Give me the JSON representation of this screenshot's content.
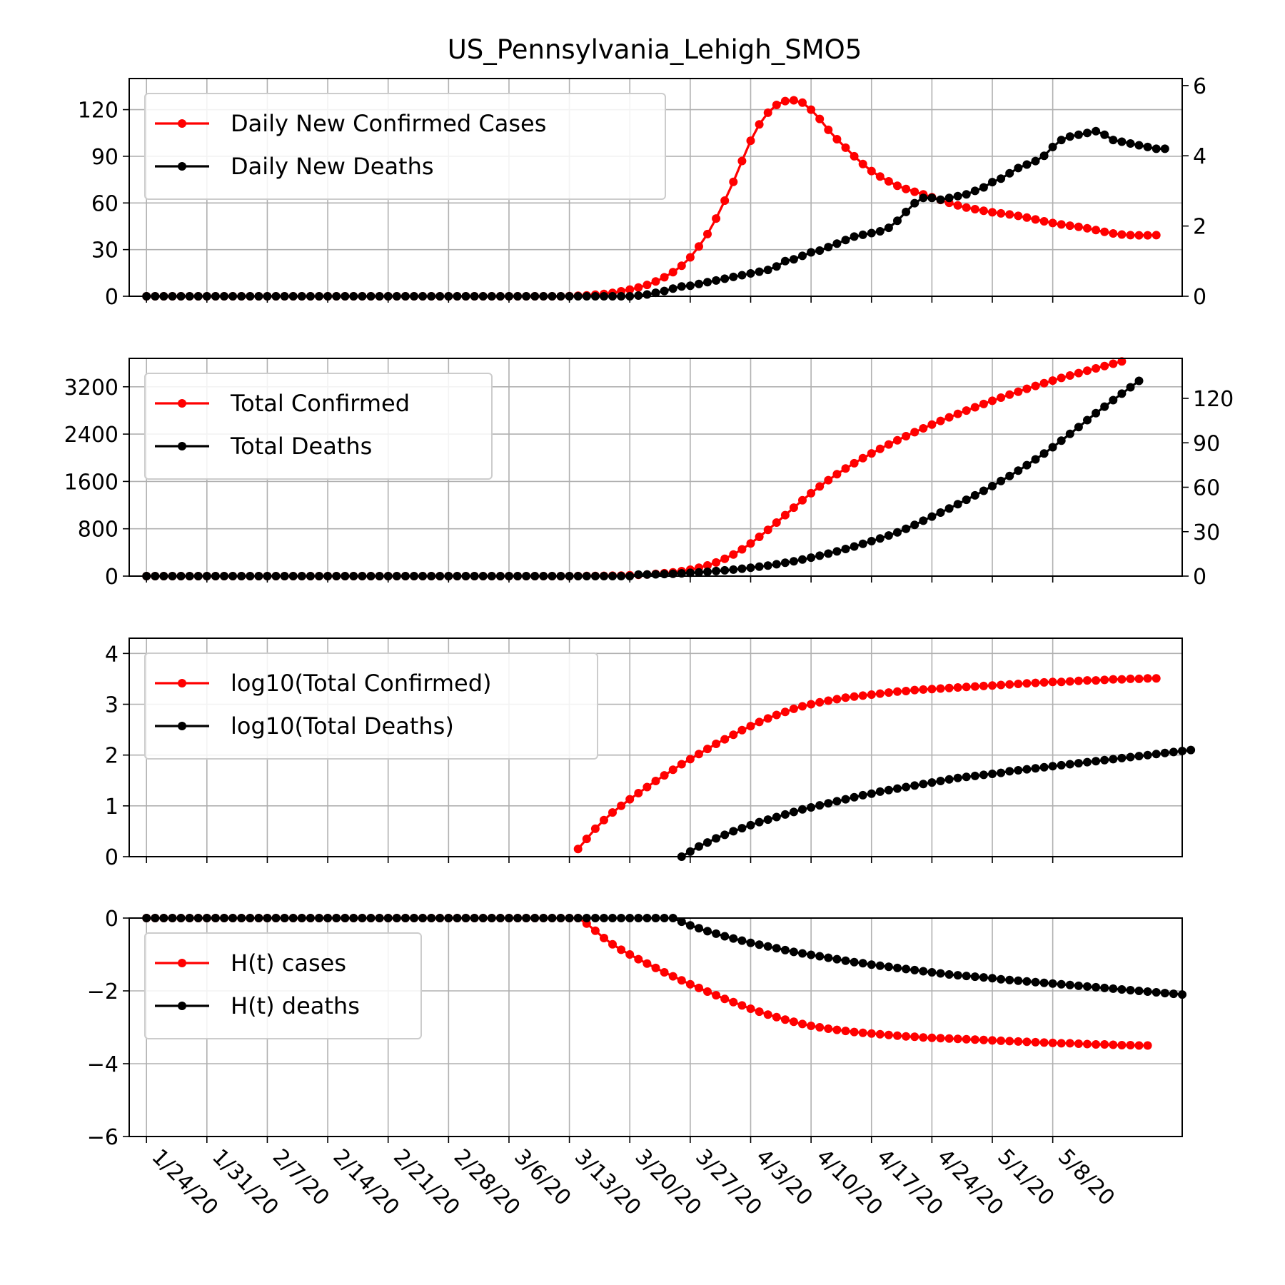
{
  "title": "US_Pennsylvania_Lehigh_SMO5",
  "colors": {
    "cases": "#ff0000",
    "deaths": "#000000",
    "grid": "#b0b0b0"
  },
  "x_axis": {
    "start_date": "1/22/20",
    "tick_labels": [
      "1/24/20",
      "1/31/20",
      "2/7/20",
      "2/14/20",
      "2/21/20",
      "2/28/20",
      "3/6/20",
      "3/13/20",
      "3/20/20",
      "3/27/20",
      "4/3/20",
      "4/10/20",
      "4/17/20",
      "4/24/20",
      "5/1/20",
      "5/8/20"
    ],
    "tick_day_index": [
      2,
      9,
      16,
      23,
      30,
      37,
      44,
      51,
      58,
      65,
      72,
      79,
      86,
      93,
      100,
      107
    ]
  },
  "chart_data": [
    {
      "type": "line",
      "ylim_left": [
        0,
        140
      ],
      "ylim_right": [
        0,
        6.2
      ],
      "yticks_left": [
        0,
        30,
        60,
        90,
        120
      ],
      "yticks_right": [
        0,
        2,
        4,
        6
      ],
      "legend": {
        "placement": "top-left",
        "entries": [
          "Daily New Confirmed Cases",
          "Daily New Deaths"
        ]
      },
      "series": [
        {
          "name": "Daily New Confirmed Cases",
          "axis": "left",
          "first_day": 2,
          "values": [
            0,
            0,
            0,
            0,
            0,
            0,
            0,
            0,
            0,
            0,
            0,
            0,
            0,
            0,
            0,
            0,
            0,
            0,
            0,
            0,
            0,
            0,
            0,
            0,
            0,
            0,
            0,
            0,
            0,
            0,
            0,
            0,
            0,
            0,
            0,
            0,
            0,
            0,
            0,
            0,
            0,
            0,
            0,
            0,
            0,
            0,
            0,
            0,
            0,
            0.1,
            0.3,
            0.6,
            1.0,
            1.5,
            2.2,
            3.2,
            4.3,
            5.6,
            7.3,
            9.5,
            12.2,
            15.5,
            19.6,
            25,
            32,
            40,
            50,
            61.5,
            73.6,
            87,
            100,
            110.5,
            118,
            123,
            125.5,
            126,
            124.5,
            120,
            114,
            107,
            101,
            95.5,
            90,
            85,
            80.5,
            77,
            73.9,
            71,
            69,
            67.2,
            65.5,
            63.7,
            61.9,
            60.1,
            58.4,
            57,
            56,
            55,
            54,
            53.3,
            52.6,
            51.7,
            50.6,
            49.4,
            48.2,
            47.1,
            46.2,
            45.4,
            44.6,
            43.7,
            42.6,
            41.4,
            40.4,
            39.7,
            39.3,
            39.2,
            39.2,
            39.3
          ]
        },
        {
          "name": "Daily New Deaths",
          "axis": "right",
          "first_day": 2,
          "values": [
            0,
            0,
            0,
            0,
            0,
            0,
            0,
            0,
            0,
            0,
            0,
            0,
            0,
            0,
            0,
            0,
            0,
            0,
            0,
            0,
            0,
            0,
            0,
            0,
            0,
            0,
            0,
            0,
            0,
            0,
            0,
            0,
            0,
            0,
            0,
            0,
            0,
            0,
            0,
            0,
            0,
            0,
            0,
            0,
            0,
            0,
            0,
            0,
            0,
            0,
            0,
            0,
            0,
            0,
            0,
            0,
            0,
            0.02,
            0.05,
            0.1,
            0.15,
            0.22,
            0.28,
            0.3,
            0.35,
            0.4,
            0.45,
            0.5,
            0.55,
            0.6,
            0.65,
            0.7,
            0.75,
            0.85,
            1.0,
            1.05,
            1.15,
            1.25,
            1.3,
            1.4,
            1.5,
            1.6,
            1.7,
            1.75,
            1.8,
            1.85,
            1.95,
            2.15,
            2.4,
            2.65,
            2.8,
            2.8,
            2.75,
            2.8,
            2.85,
            2.9,
            3.0,
            3.1,
            3.25,
            3.35,
            3.5,
            3.65,
            3.75,
            3.85,
            4.0,
            4.25,
            4.45,
            4.55,
            4.6,
            4.65,
            4.7,
            4.6,
            4.45,
            4.4,
            4.35,
            4.3,
            4.25,
            4.2,
            4.2
          ]
        }
      ]
    },
    {
      "type": "line",
      "ylim_left": [
        0,
        3680
      ],
      "ylim_right": [
        0,
        147
      ],
      "yticks_left": [
        0,
        800,
        1600,
        2400,
        3200
      ],
      "yticks_right": [
        0,
        30,
        60,
        90,
        120
      ],
      "legend": {
        "placement": "top-left",
        "entries": [
          "Total Confirmed",
          "Total Deaths"
        ]
      },
      "series": [
        {
          "name": "Total Confirmed",
          "axis": "left",
          "first_day": 2,
          "values": [
            0,
            0,
            0,
            0,
            0,
            0,
            0,
            0,
            0,
            0,
            0,
            0,
            0,
            0,
            0,
            0,
            0,
            0,
            0,
            0,
            0,
            0,
            0,
            0,
            0,
            0,
            0,
            0,
            0,
            0,
            0,
            0,
            0,
            0,
            0,
            0,
            0,
            0,
            0,
            0,
            0,
            0,
            0,
            0,
            0,
            0,
            0,
            0,
            0,
            0,
            1,
            2,
            3,
            5,
            7,
            10,
            15,
            20,
            27,
            37,
            49,
            64,
            84,
            109,
            141,
            181,
            231,
            293,
            366,
            453,
            553,
            664,
            782,
            905,
            1031,
            1157,
            1281,
            1401,
            1515,
            1622,
            1723,
            1818,
            1908,
            1993,
            2074,
            2151,
            2225,
            2296,
            2365,
            2432,
            2497,
            2561,
            2623,
            2683,
            2741,
            2798,
            2854,
            2909,
            2963,
            3016,
            3067,
            3117,
            3166,
            3214,
            3260,
            3305,
            3349,
            3391,
            3432,
            3472,
            3511,
            3550,
            3589,
            3628
          ]
        },
        {
          "name": "Total Deaths",
          "axis": "right",
          "first_day": 2,
          "values": [
            0,
            0,
            0,
            0,
            0,
            0,
            0,
            0,
            0,
            0,
            0,
            0,
            0,
            0,
            0,
            0,
            0,
            0,
            0,
            0,
            0,
            0,
            0,
            0,
            0,
            0,
            0,
            0,
            0,
            0,
            0,
            0,
            0,
            0,
            0,
            0,
            0,
            0,
            0,
            0,
            0,
            0,
            0,
            0,
            0,
            0,
            0,
            0,
            0,
            0,
            0,
            0,
            0,
            0,
            0,
            0,
            0,
            1,
            1.1,
            1.2,
            1.4,
            1.6,
            1.9,
            2.2,
            2.5,
            2.9,
            3.4,
            3.9,
            4.4,
            5.0,
            5.7,
            6.4,
            7.1,
            8.0,
            9.0,
            10.0,
            11.2,
            12.5,
            13.8,
            15.2,
            16.7,
            18.3,
            20.0,
            21.8,
            23.6,
            25.4,
            27.4,
            29.5,
            31.9,
            34.6,
            37.4,
            40.2,
            42.9,
            45.7,
            48.6,
            51.5,
            54.5,
            57.6,
            60.8,
            64.2,
            67.6,
            71.2,
            74.9,
            78.8,
            82.8,
            87.0,
            91.5,
            96.0,
            100.6,
            105.3,
            110.0,
            114.4,
            118.8,
            123.2,
            127.5,
            131.8
          ]
        }
      ]
    },
    {
      "type": "line",
      "ylim_left": [
        0,
        4.3
      ],
      "yticks_left": [
        0,
        1,
        2,
        3,
        4
      ],
      "legend": {
        "placement": "top-left",
        "entries": [
          "log10(Total Confirmed)",
          "log10(Total Deaths)"
        ]
      },
      "series": [
        {
          "name": "log10(Total Confirmed)",
          "axis": "left",
          "first_day": 52,
          "values": [
            0.15,
            0.35,
            0.55,
            0.72,
            0.87,
            1.0,
            1.13,
            1.25,
            1.37,
            1.49,
            1.6,
            1.71,
            1.82,
            1.92,
            2.02,
            2.12,
            2.22,
            2.31,
            2.4,
            2.49,
            2.57,
            2.65,
            2.72,
            2.79,
            2.85,
            2.91,
            2.96,
            3.0,
            3.04,
            3.07,
            3.1,
            3.13,
            3.15,
            3.17,
            3.19,
            3.21,
            3.23,
            3.25,
            3.26,
            3.28,
            3.29,
            3.3,
            3.31,
            3.32,
            3.33,
            3.34,
            3.35,
            3.36,
            3.37,
            3.38,
            3.39,
            3.4,
            3.41,
            3.42,
            3.43,
            3.44,
            3.44,
            3.45,
            3.46,
            3.47,
            3.47,
            3.48,
            3.49,
            3.49,
            3.5,
            3.5,
            3.51,
            3.51
          ]
        },
        {
          "name": "log10(Total Deaths)",
          "axis": "left",
          "first_day": 64,
          "values": [
            0.0,
            0.1,
            0.2,
            0.28,
            0.36,
            0.43,
            0.5,
            0.56,
            0.62,
            0.68,
            0.73,
            0.78,
            0.83,
            0.88,
            0.93,
            0.97,
            1.01,
            1.05,
            1.09,
            1.13,
            1.17,
            1.21,
            1.24,
            1.28,
            1.31,
            1.34,
            1.37,
            1.4,
            1.43,
            1.46,
            1.49,
            1.52,
            1.55,
            1.57,
            1.59,
            1.61,
            1.63,
            1.65,
            1.68,
            1.7,
            1.72,
            1.74,
            1.76,
            1.78,
            1.8,
            1.82,
            1.84,
            1.86,
            1.88,
            1.9,
            1.92,
            1.94,
            1.96,
            1.98,
            2.0,
            2.02,
            2.04,
            2.06,
            2.08,
            2.1
          ]
        }
      ]
    },
    {
      "type": "line",
      "ylim_left": [
        -6,
        0
      ],
      "yticks_left": [
        -6,
        -4,
        -2,
        0
      ],
      "legend": {
        "placement": "top-left",
        "entries": [
          "H(t) cases",
          "H(t) deaths"
        ]
      },
      "series": [
        {
          "name": "H(t) cases",
          "axis": "left",
          "first_day": 2,
          "values": [
            0,
            0,
            0,
            0,
            0,
            0,
            0,
            0,
            0,
            0,
            0,
            0,
            0,
            0,
            0,
            0,
            0,
            0,
            0,
            0,
            0,
            0,
            0,
            0,
            0,
            0,
            0,
            0,
            0,
            0,
            0,
            0,
            0,
            0,
            0,
            0,
            0,
            0,
            0,
            0,
            0,
            0,
            0,
            0,
            0,
            0,
            0,
            0,
            0,
            0,
            0,
            -0.15,
            -0.35,
            -0.55,
            -0.72,
            -0.87,
            -1.0,
            -1.13,
            -1.25,
            -1.37,
            -1.49,
            -1.6,
            -1.71,
            -1.82,
            -1.92,
            -2.02,
            -2.12,
            -2.22,
            -2.31,
            -2.4,
            -2.49,
            -2.57,
            -2.65,
            -2.72,
            -2.79,
            -2.85,
            -2.91,
            -2.96,
            -3.0,
            -3.04,
            -3.07,
            -3.1,
            -3.13,
            -3.15,
            -3.17,
            -3.19,
            -3.21,
            -3.23,
            -3.25,
            -3.26,
            -3.28,
            -3.29,
            -3.3,
            -3.31,
            -3.32,
            -3.33,
            -3.34,
            -3.35,
            -3.36,
            -3.37,
            -3.38,
            -3.39,
            -3.4,
            -3.41,
            -3.42,
            -3.43,
            -3.44,
            -3.44,
            -3.45,
            -3.46,
            -3.47,
            -3.47,
            -3.48,
            -3.49,
            -3.49,
            -3.5,
            -3.5
          ]
        },
        {
          "name": "H(t) deaths",
          "axis": "left",
          "first_day": 2,
          "values": [
            0,
            0,
            0,
            0,
            0,
            0,
            0,
            0,
            0,
            0,
            0,
            0,
            0,
            0,
            0,
            0,
            0,
            0,
            0,
            0,
            0,
            0,
            0,
            0,
            0,
            0,
            0,
            0,
            0,
            0,
            0,
            0,
            0,
            0,
            0,
            0,
            0,
            0,
            0,
            0,
            0,
            0,
            0,
            0,
            0,
            0,
            0,
            0,
            0,
            0,
            0,
            0,
            0,
            0,
            0,
            0,
            0,
            0,
            0,
            0,
            0,
            0,
            -0.1,
            -0.2,
            -0.28,
            -0.36,
            -0.43,
            -0.5,
            -0.56,
            -0.62,
            -0.68,
            -0.73,
            -0.78,
            -0.83,
            -0.88,
            -0.93,
            -0.97,
            -1.01,
            -1.05,
            -1.09,
            -1.13,
            -1.17,
            -1.21,
            -1.24,
            -1.28,
            -1.31,
            -1.34,
            -1.37,
            -1.4,
            -1.43,
            -1.46,
            -1.49,
            -1.52,
            -1.55,
            -1.57,
            -1.59,
            -1.61,
            -1.63,
            -1.65,
            -1.68,
            -1.7,
            -1.72,
            -1.74,
            -1.76,
            -1.78,
            -1.8,
            -1.82,
            -1.84,
            -1.86,
            -1.88,
            -1.9,
            -1.92,
            -1.94,
            -1.96,
            -1.98,
            -2.0,
            -2.02,
            -2.04,
            -2.06,
            -2.08,
            -2.1
          ]
        }
      ]
    }
  ]
}
